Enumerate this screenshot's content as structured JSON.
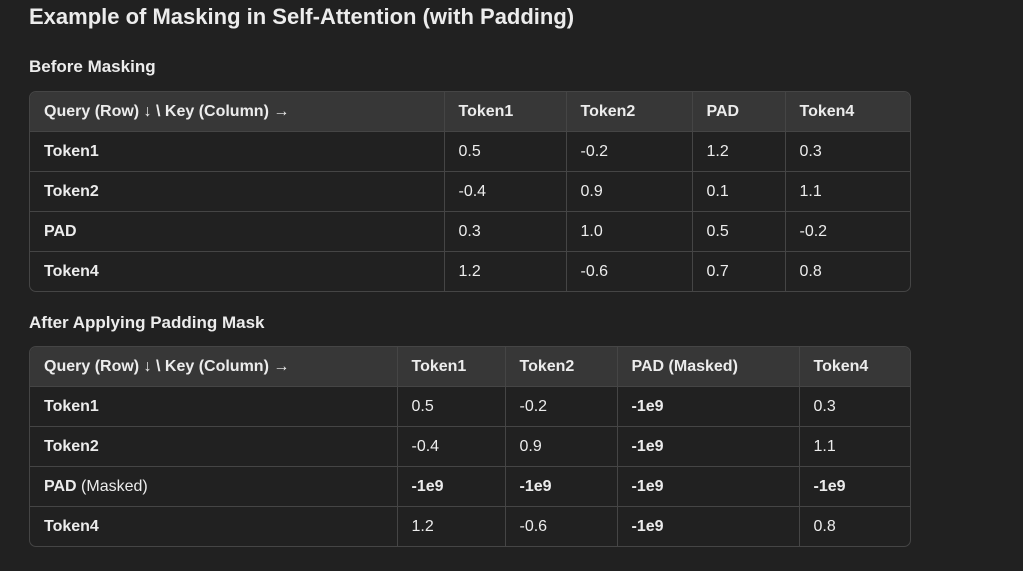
{
  "title": "Example of Masking in Self-Attention (with Padding)",
  "before": {
    "heading": "Before Masking",
    "headers": [
      "Query (Row) ↓ \\ Key (Column) →",
      "Token1",
      "Token2",
      "PAD",
      "Token4"
    ],
    "rows": [
      {
        "label": "Token1",
        "cells": [
          "0.5",
          "-0.2",
          "1.2",
          "0.3"
        ]
      },
      {
        "label": "Token2",
        "cells": [
          "-0.4",
          "0.9",
          "0.1",
          "1.1"
        ]
      },
      {
        "label": "PAD",
        "cells": [
          "0.3",
          "1.0",
          "0.5",
          "-0.2"
        ]
      },
      {
        "label": "Token4",
        "cells": [
          "1.2",
          "-0.6",
          "0.7",
          "0.8"
        ]
      }
    ]
  },
  "after": {
    "heading": "After Applying Padding Mask",
    "headers": [
      "Query (Row) ↓ \\ Key (Column) →",
      "Token1",
      "Token2",
      "PAD (Masked)",
      "Token4"
    ],
    "rows": [
      {
        "label": "Token1",
        "label_suffix": "",
        "cells": [
          "0.5",
          "-0.2",
          "-1e9",
          "0.3"
        ]
      },
      {
        "label": "Token2",
        "label_suffix": "",
        "cells": [
          "-0.4",
          "0.9",
          "-1e9",
          "1.1"
        ]
      },
      {
        "label": "PAD",
        "label_suffix": " (Masked)",
        "cells": [
          "-1e9",
          "-1e9",
          "-1e9",
          "-1e9"
        ]
      },
      {
        "label": "Token4",
        "label_suffix": "",
        "cells": [
          "1.2",
          "-0.6",
          "-1e9",
          "0.8"
        ]
      }
    ]
  }
}
